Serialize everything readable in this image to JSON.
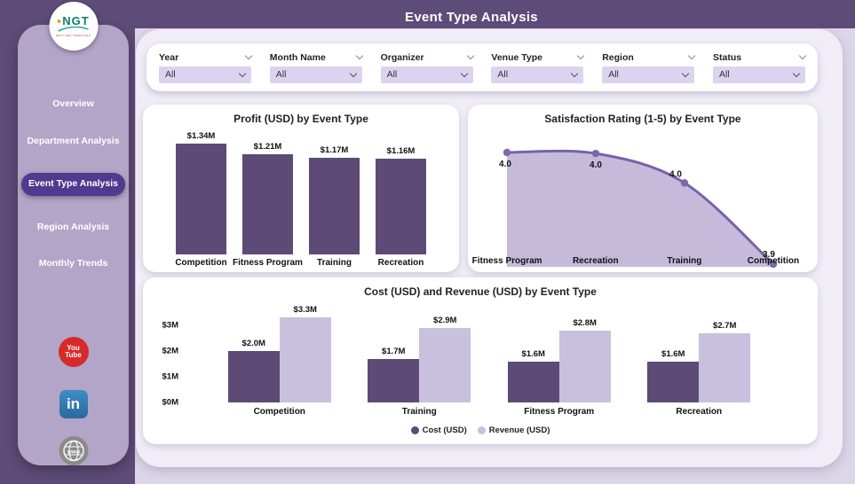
{
  "header": {
    "title": "Event Type Analysis"
  },
  "sidebar": {
    "logo": {
      "text": "NGT",
      "subtext": "NEXT GEN TEMPLATES"
    },
    "items": [
      {
        "label": "Overview",
        "active": false
      },
      {
        "label": "Department Analysis",
        "active": false
      },
      {
        "label": "Event Type Analysis",
        "active": true
      },
      {
        "label": "Region Analysis",
        "active": false
      },
      {
        "label": "Monthly Trends",
        "active": false
      }
    ],
    "socials": {
      "youtube_line1": "You",
      "youtube_line2": "Tube",
      "linkedin": "in",
      "web": "www"
    }
  },
  "filters": [
    {
      "label": "Year",
      "value": "All"
    },
    {
      "label": "Month Name",
      "value": "All"
    },
    {
      "label": "Organizer",
      "value": "All"
    },
    {
      "label": "Venue Type",
      "value": "All"
    },
    {
      "label": "Region",
      "value": "All"
    },
    {
      "label": "Status",
      "value": "All"
    }
  ],
  "colors": {
    "dark_purple": "#5d4b78",
    "sidebar_panel": "#b3a5c7",
    "active_pill": "#4f3a8f",
    "bar_dark": "#5d4a76",
    "bar_light": "#c9c0dd",
    "area_line": "#7a61a9",
    "area_fill": "#c6badb",
    "marker": "#7e68ac",
    "dropdown_bg": "#ddd3f0"
  },
  "chart_data": [
    {
      "type": "bar",
      "title": "Profit (USD) by Event Type",
      "categories": [
        "Competition",
        "Fitness Program",
        "Training",
        "Recreation"
      ],
      "values": [
        1.34,
        1.21,
        1.17,
        1.16
      ],
      "labels": [
        "$1.34M",
        "$1.21M",
        "$1.17M",
        "$1.16M"
      ],
      "ylabel": "Profit (USD)",
      "ylim": [
        0,
        1.34
      ],
      "grid": false,
      "bar_color": "#5d4a76"
    },
    {
      "type": "area",
      "title": "Satisfaction Rating (1-5) by Event Type",
      "categories": [
        "Fitness Program",
        "Recreation",
        "Training",
        "Competition"
      ],
      "values": [
        4.0,
        4.0,
        4.0,
        3.9
      ],
      "labels": [
        "4.0",
        "4.0",
        "4.0",
        "3.9"
      ],
      "plot_values": [
        4.0,
        3.999,
        3.97,
        3.89
      ],
      "ylabel": "Satisfaction Rating (1-5)",
      "grid": false,
      "line_color": "#7a61a9",
      "fill_color": "#c6badb",
      "marker_color": "#7e68ac"
    },
    {
      "type": "bar",
      "title": "Cost (USD) and Revenue (USD) by Event Type",
      "categories": [
        "Competition",
        "Training",
        "Fitness Program",
        "Recreation"
      ],
      "series": [
        {
          "name": "Cost (USD)",
          "values": [
            2.0,
            1.7,
            1.6,
            1.6
          ],
          "labels": [
            "$2.0M",
            "$1.7M",
            "$1.6M",
            "$1.6M"
          ],
          "color": "#5d4a76"
        },
        {
          "name": "Revenue (USD)",
          "values": [
            3.3,
            2.9,
            2.8,
            2.7
          ],
          "labels": [
            "$3.3M",
            "$2.9M",
            "$2.8M",
            "$2.7M"
          ],
          "color": "#c9c0dd"
        }
      ],
      "y_ticks": [
        "$0M",
        "$1M",
        "$2M",
        "$3M"
      ],
      "ylim": [
        0,
        3.5
      ],
      "grid": false,
      "legend_position": "bottom"
    }
  ]
}
